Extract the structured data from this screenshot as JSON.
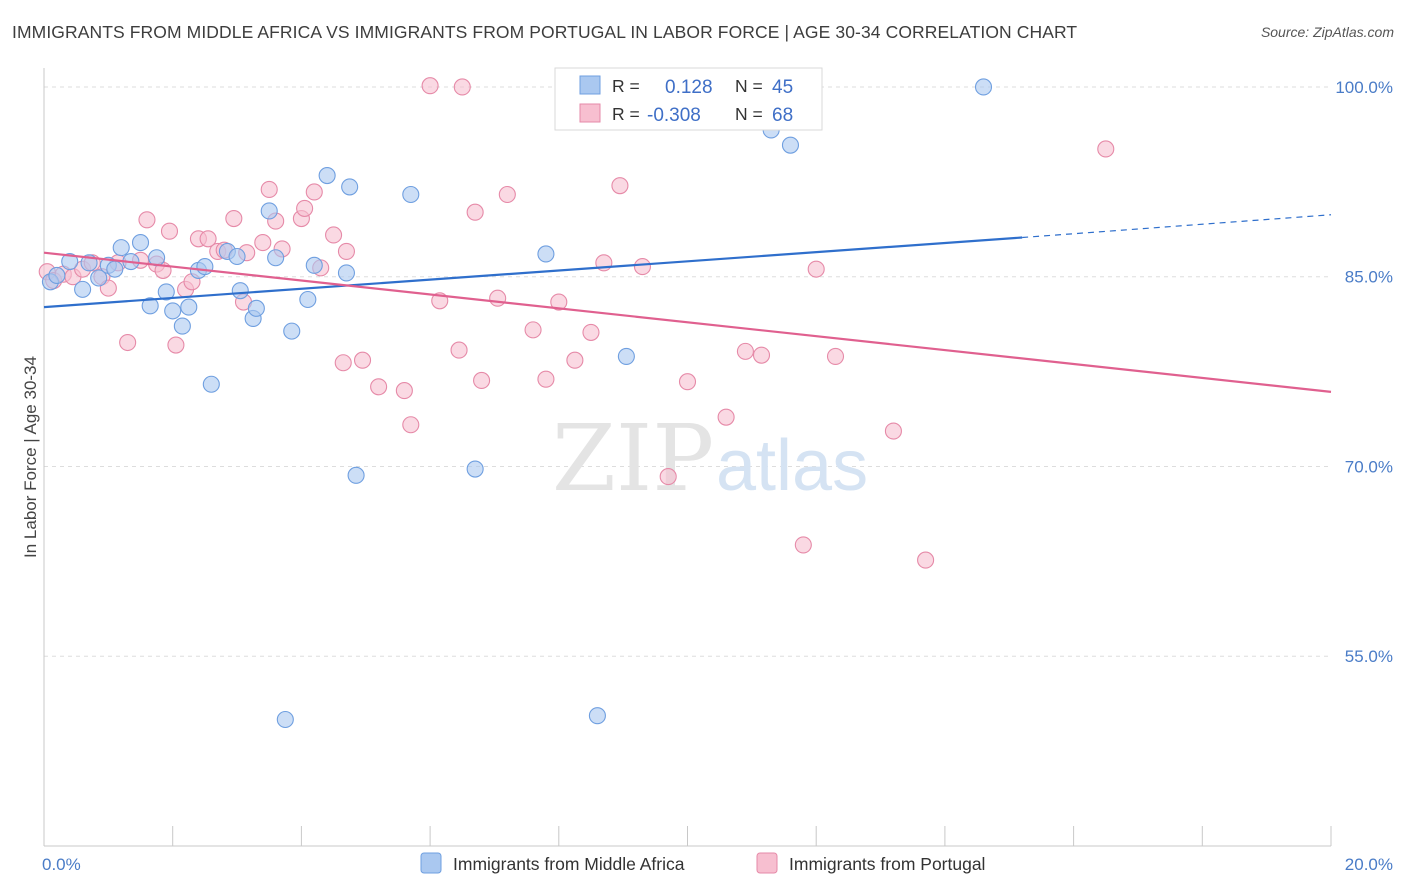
{
  "header": {
    "title": "IMMIGRANTS FROM MIDDLE AFRICA VS IMMIGRANTS FROM PORTUGAL IN LABOR FORCE | AGE 30-34 CORRELATION CHART",
    "source": "Source: ZipAtlas.com"
  },
  "watermark": {
    "zip": "ZIP",
    "atlas": "atlas"
  },
  "colors": {
    "blue_fill": "#aac8f0",
    "blue_stroke": "#6f9fe0",
    "blue_line": "#2f6fcc",
    "pink_fill": "#f7bfd0",
    "pink_stroke": "#e68aa8",
    "pink_line": "#e0608f",
    "grid": "#dddddd",
    "tick_text": "#4a7cc7"
  },
  "legend": {
    "rows": [
      {
        "r_label": "R =",
        "r_value": "0.128",
        "n_label": "N =",
        "n_value": "45"
      },
      {
        "r_label": "R =",
        "r_value": "-0.308",
        "n_label": "N =",
        "n_value": "68"
      }
    ],
    "bottom": [
      "Immigrants from Middle Africa",
      "Immigrants from Portugal"
    ]
  },
  "chart_data": {
    "type": "scatter",
    "title": "IMMIGRANTS FROM MIDDLE AFRICA VS IMMIGRANTS FROM PORTUGAL IN LABOR FORCE | AGE 30-34 CORRELATION CHART",
    "xlabel": "",
    "ylabel": "In Labor Force | Age 30-34",
    "xlim": [
      0,
      20
    ],
    "ylim": [
      40,
      101.5
    ],
    "x_tick_labels": [
      "0.0%",
      "20.0%"
    ],
    "y_ticks": [
      55,
      70,
      85,
      100
    ],
    "y_tick_labels": [
      "55.0%",
      "70.0%",
      "85.0%",
      "100.0%"
    ],
    "grid": true,
    "legend_position": "top-center",
    "series": [
      {
        "name": "Immigrants from Middle Africa",
        "color": "#6f9fe0",
        "r": 0.128,
        "n": 45,
        "trend": {
          "x": [
            0,
            15.2
          ],
          "y": [
            82.6,
            88.1
          ],
          "dashed_to": [
            20,
            89.9
          ]
        },
        "points": [
          [
            0.1,
            84.6
          ],
          [
            0.2,
            85.1
          ],
          [
            0.4,
            86.2
          ],
          [
            0.6,
            84.0
          ],
          [
            0.7,
            86.1
          ],
          [
            0.85,
            84.9
          ],
          [
            1.0,
            85.9
          ],
          [
            1.1,
            85.6
          ],
          [
            1.2,
            87.3
          ],
          [
            1.35,
            86.2
          ],
          [
            1.5,
            87.7
          ],
          [
            1.65,
            82.7
          ],
          [
            1.75,
            86.5
          ],
          [
            1.9,
            83.8
          ],
          [
            2.0,
            82.3
          ],
          [
            2.15,
            81.1
          ],
          [
            2.25,
            82.6
          ],
          [
            2.4,
            85.5
          ],
          [
            2.5,
            85.8
          ],
          [
            2.6,
            76.5
          ],
          [
            2.85,
            87.0
          ],
          [
            3.0,
            86.6
          ],
          [
            3.05,
            83.9
          ],
          [
            3.25,
            81.7
          ],
          [
            3.3,
            82.5
          ],
          [
            3.5,
            90.2
          ],
          [
            3.6,
            86.5
          ],
          [
            3.75,
            50.0
          ],
          [
            3.85,
            80.7
          ],
          [
            4.1,
            83.2
          ],
          [
            4.2,
            85.9
          ],
          [
            4.4,
            93.0
          ],
          [
            4.7,
            85.3
          ],
          [
            4.75,
            92.1
          ],
          [
            4.85,
            69.3
          ],
          [
            5.7,
            91.5
          ],
          [
            6.7,
            69.8
          ],
          [
            7.8,
            86.8
          ],
          [
            8.6,
            50.3
          ],
          [
            9.05,
            78.7
          ],
          [
            11.3,
            96.6
          ],
          [
            11.6,
            95.4
          ],
          [
            14.6,
            100.0
          ],
          [
            9.1,
            100.2
          ],
          [
            11.7,
            100.3
          ]
        ]
      },
      {
        "name": "Immigrants from Portugal",
        "color": "#e68aa8",
        "r": -0.308,
        "n": 68,
        "trend": {
          "x": [
            0,
            20
          ],
          "y": [
            86.9,
            75.9
          ]
        },
        "points": [
          [
            0.05,
            85.4
          ],
          [
            0.15,
            84.7
          ],
          [
            0.3,
            85.2
          ],
          [
            0.45,
            85.0
          ],
          [
            0.6,
            85.6
          ],
          [
            0.75,
            86.1
          ],
          [
            0.9,
            85.0
          ],
          [
            1.0,
            84.1
          ],
          [
            1.15,
            86.1
          ],
          [
            1.3,
            79.8
          ],
          [
            1.5,
            86.3
          ],
          [
            1.6,
            89.5
          ],
          [
            1.75,
            86.0
          ],
          [
            1.85,
            85.5
          ],
          [
            1.95,
            88.6
          ],
          [
            2.05,
            79.6
          ],
          [
            2.2,
            84.0
          ],
          [
            2.3,
            84.6
          ],
          [
            2.4,
            88.0
          ],
          [
            2.55,
            88.0
          ],
          [
            2.7,
            87.0
          ],
          [
            2.8,
            87.1
          ],
          [
            2.95,
            89.6
          ],
          [
            3.1,
            83.0
          ],
          [
            3.15,
            86.9
          ],
          [
            3.4,
            87.7
          ],
          [
            3.5,
            91.9
          ],
          [
            3.6,
            89.4
          ],
          [
            3.7,
            87.2
          ],
          [
            4.0,
            89.6
          ],
          [
            4.05,
            90.4
          ],
          [
            4.2,
            91.7
          ],
          [
            4.3,
            85.7
          ],
          [
            4.5,
            88.3
          ],
          [
            4.65,
            78.2
          ],
          [
            4.7,
            87.0
          ],
          [
            4.95,
            78.4
          ],
          [
            5.2,
            76.3
          ],
          [
            5.6,
            76.0
          ],
          [
            5.7,
            73.3
          ],
          [
            6.0,
            100.1
          ],
          [
            6.15,
            83.1
          ],
          [
            6.45,
            79.2
          ],
          [
            6.5,
            100.0
          ],
          [
            6.7,
            90.1
          ],
          [
            6.8,
            76.8
          ],
          [
            7.05,
            83.3
          ],
          [
            7.2,
            91.5
          ],
          [
            7.6,
            80.8
          ],
          [
            7.8,
            76.9
          ],
          [
            8.0,
            83.0
          ],
          [
            8.25,
            78.4
          ],
          [
            8.5,
            80.6
          ],
          [
            8.7,
            86.1
          ],
          [
            8.95,
            92.2
          ],
          [
            9.3,
            85.8
          ],
          [
            9.7,
            69.2
          ],
          [
            10.0,
            76.7
          ],
          [
            10.6,
            73.9
          ],
          [
            10.9,
            79.1
          ],
          [
            11.15,
            78.8
          ],
          [
            11.8,
            63.8
          ],
          [
            12.0,
            85.6
          ],
          [
            12.3,
            78.7
          ],
          [
            13.2,
            72.8
          ],
          [
            13.7,
            62.6
          ],
          [
            16.5,
            95.1
          ],
          [
            11.5,
            100.2
          ]
        ]
      }
    ]
  }
}
